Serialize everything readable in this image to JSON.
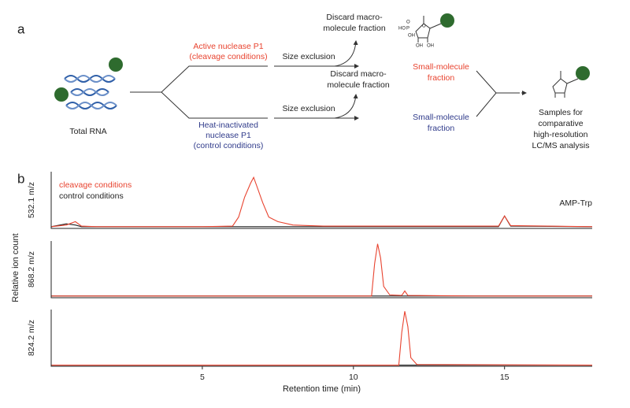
{
  "panel_a": {
    "label": "a",
    "total_rna": "Total RNA",
    "active": [
      "Active nuclease P1",
      "(cleavage conditions)"
    ],
    "inactive": [
      "Heat-inactivated",
      "nuclease P1",
      "(control conditions)"
    ],
    "size_exclusion_top": "Size exclusion",
    "size_exclusion_bottom": "Size exclusion",
    "discard_top": [
      "Discard macro-",
      "molecule fraction"
    ],
    "discard_bottom": [
      "Discard macro-",
      "molecule fraction"
    ],
    "small_top": [
      "Small-molecule",
      "fraction"
    ],
    "small_bottom": [
      "Small-molecule",
      "fraction"
    ],
    "samples": [
      "Samples for",
      "comparative",
      "high-resolution",
      "LC/MS analysis"
    ],
    "molecule_atoms": [
      "HO",
      "P",
      "O",
      "OH",
      "O",
      "OH",
      "OH"
    ]
  },
  "panel_b": {
    "label": "b",
    "ylabel": "Relative ion count"
  },
  "chart_data": [
    {
      "type": "line",
      "ylabel": "532.1 m/z",
      "annotation": "AMP-Trp",
      "xlim": [
        0,
        17.9
      ],
      "ylim": [
        0,
        100
      ],
      "x": [
        0,
        0.5,
        0.8,
        1.0,
        1.5,
        3,
        5,
        6.0,
        6.2,
        6.4,
        6.6,
        6.7,
        6.8,
        7.0,
        7.2,
        7.5,
        8,
        9,
        12,
        14.8,
        15.0,
        15.2,
        17.9
      ],
      "series": [
        {
          "name": "control conditions",
          "color": "#222222",
          "values": [
            3,
            8,
            6,
            3,
            3,
            3,
            3,
            3,
            3,
            3,
            3,
            3,
            3,
            3,
            3,
            3,
            3,
            3,
            3,
            3,
            22,
            4,
            3
          ]
        },
        {
          "name": "cleavage conditions",
          "color": "#e8432f",
          "values": [
            3,
            6,
            12,
            4,
            3,
            3,
            3,
            4,
            20,
            55,
            80,
            90,
            75,
            45,
            20,
            12,
            6,
            4,
            4,
            4,
            22,
            5,
            3
          ]
        }
      ]
    },
    {
      "type": "line",
      "ylabel": "868.2 m/z",
      "xlim": [
        0,
        17.9
      ],
      "ylim": [
        0,
        100
      ],
      "x": [
        0,
        1,
        5,
        10.6,
        10.7,
        10.8,
        10.9,
        11.0,
        11.2,
        11.6,
        11.7,
        11.8,
        14,
        17.9
      ],
      "series": [
        {
          "color": "#222222",
          "values": [
            3,
            3,
            3,
            3,
            3,
            3,
            3,
            3,
            3,
            3,
            3,
            3,
            3,
            3
          ]
        },
        {
          "color": "#e8432f",
          "values": [
            3,
            3,
            3,
            3,
            60,
            95,
            70,
            20,
            5,
            4,
            12,
            4,
            3,
            3
          ]
        }
      ]
    },
    {
      "type": "line",
      "ylabel": "824.2 m/z",
      "xlabel": "Retention time (min)",
      "xlim": [
        0,
        17.9
      ],
      "ylim": [
        0,
        100
      ],
      "xticks": [
        5,
        10,
        15
      ],
      "x": [
        0,
        5,
        11.5,
        11.6,
        11.7,
        11.8,
        11.9,
        12.1,
        17.9
      ],
      "series": [
        {
          "color": "#222222",
          "values": [
            2,
            2,
            2,
            2,
            2,
            2,
            2,
            2,
            2
          ]
        },
        {
          "color": "#e8432f",
          "values": [
            2,
            2,
            2,
            60,
            97,
            70,
            15,
            3,
            2
          ]
        }
      ]
    }
  ]
}
